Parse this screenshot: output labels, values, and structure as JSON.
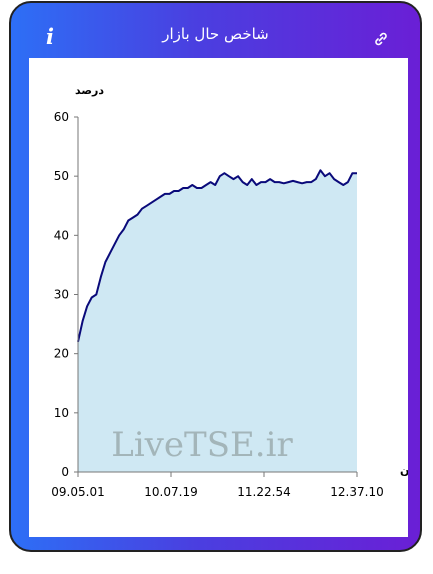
{
  "header": {
    "title": "شاخص حال بازار",
    "info_icon": "info-icon",
    "link_icon": "link-icon"
  },
  "colors": {
    "gradient_start": "#2d6ff6",
    "gradient_end": "#6a1fd6",
    "line": "#0a0a7a",
    "fill": "#cfe8f3"
  },
  "watermark": "LiveTSE.ir",
  "chart_data": {
    "type": "area",
    "ylabel": "درصد",
    "xlabel": "زمان",
    "ylim": [
      0,
      60
    ],
    "yticks": [
      0,
      10,
      20,
      30,
      40,
      50,
      60
    ],
    "xtick_labels": [
      "09.05.01",
      "10.07.19",
      "11.22.54",
      "12.37.10"
    ],
    "grid": false,
    "legend": "none",
    "series": [
      {
        "values": [
          22.0,
          25.5,
          28.0,
          29.5,
          30.0,
          33.0,
          35.5,
          37.0,
          38.5,
          40.0,
          41.0,
          42.5,
          43.0,
          43.5,
          44.5,
          45.0,
          45.5,
          46.0,
          46.5,
          47.0,
          47.0,
          47.5,
          47.5,
          48.0,
          48.0,
          48.5,
          48.0,
          48.0,
          48.5,
          49.0,
          48.5,
          50.0,
          50.5,
          50.0,
          49.5,
          50.0,
          49.0,
          48.5,
          49.5,
          48.5,
          49.0,
          49.0,
          49.5,
          49.0,
          49.0,
          48.8,
          49.0,
          49.2,
          49.0,
          48.8,
          49.0,
          49.0,
          49.5,
          51.0,
          50.0,
          50.5,
          49.5,
          49.0,
          48.5,
          49.0,
          50.5,
          50.5
        ]
      }
    ]
  }
}
